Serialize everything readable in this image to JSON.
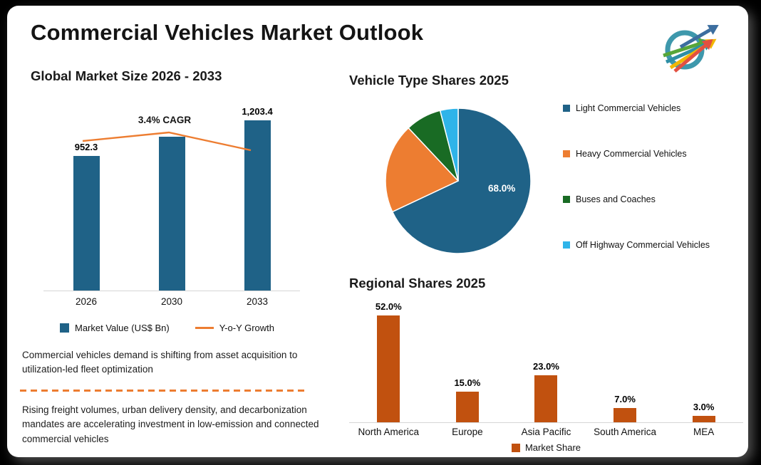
{
  "page": {
    "title": "Commercial Vehicles Market Outlook"
  },
  "insights": {
    "paragraph1": "Commercial vehicles demand is shifting from asset acquisition to utilization-led fleet optimization",
    "paragraph2": "Rising freight volumes, urban delivery density, and decarbonization mandates are accelerating investment in low-emission and connected commercial vehicles"
  },
  "colors": {
    "primary_blue": "#1F6287",
    "accent_orange": "#ED7D31",
    "dark_green": "#196B24",
    "light_blue": "#2FB4E9",
    "rust_orange": "#C1510F",
    "divider_orange": "#ED7D31"
  },
  "chart_data": [
    {
      "id": "global-market-size",
      "type": "bar",
      "title": "Global Market Size 2026 - 2033",
      "categories": [
        "2026",
        "2030",
        "2033"
      ],
      "series": [
        {
          "name": "Market Value (US$ Bn)",
          "type": "bar",
          "color": "#1F6287",
          "values": [
            952.3,
            1088.6,
            1203.4
          ],
          "value_labels": [
            "952.3",
            "",
            "1,203.4"
          ]
        },
        {
          "name": "Y-o-Y Growth",
          "type": "line",
          "color": "#ED7D31"
        }
      ],
      "annotation": "3.4% CAGR",
      "xlabel": "",
      "ylabel": "Market Value (US$ Bn)",
      "ylim": [
        0,
        1350
      ],
      "grid": false,
      "legend_position": "bottom"
    },
    {
      "id": "vehicle-type-shares",
      "type": "pie",
      "title": "Vehicle Type Shares 2025",
      "labels": [
        "Light Commercial Vehicles",
        "Heavy Commercial Vehicles",
        "Buses and Coaches",
        "Off Highway Commercial Vehicles"
      ],
      "values": [
        68.0,
        20.0,
        8.0,
        4.0
      ],
      "colors": [
        "#1F6287",
        "#ED7D31",
        "#196B24",
        "#2FB4E9"
      ],
      "data_label": "68.0%",
      "legend_position": "right"
    },
    {
      "id": "regional-shares",
      "type": "bar",
      "title": "Regional Shares 2025",
      "categories": [
        "North America",
        "Europe",
        "Asia Pacific",
        "South America",
        "MEA"
      ],
      "values": [
        52.0,
        15.0,
        23.0,
        7.0,
        3.0
      ],
      "value_labels": [
        "52.0%",
        "15.0%",
        "23.0%",
        "7.0%",
        "3.0%"
      ],
      "color": "#C1510F",
      "legend": [
        "Market Share"
      ],
      "ylim": [
        0,
        55
      ],
      "grid": false,
      "legend_position": "bottom"
    }
  ]
}
